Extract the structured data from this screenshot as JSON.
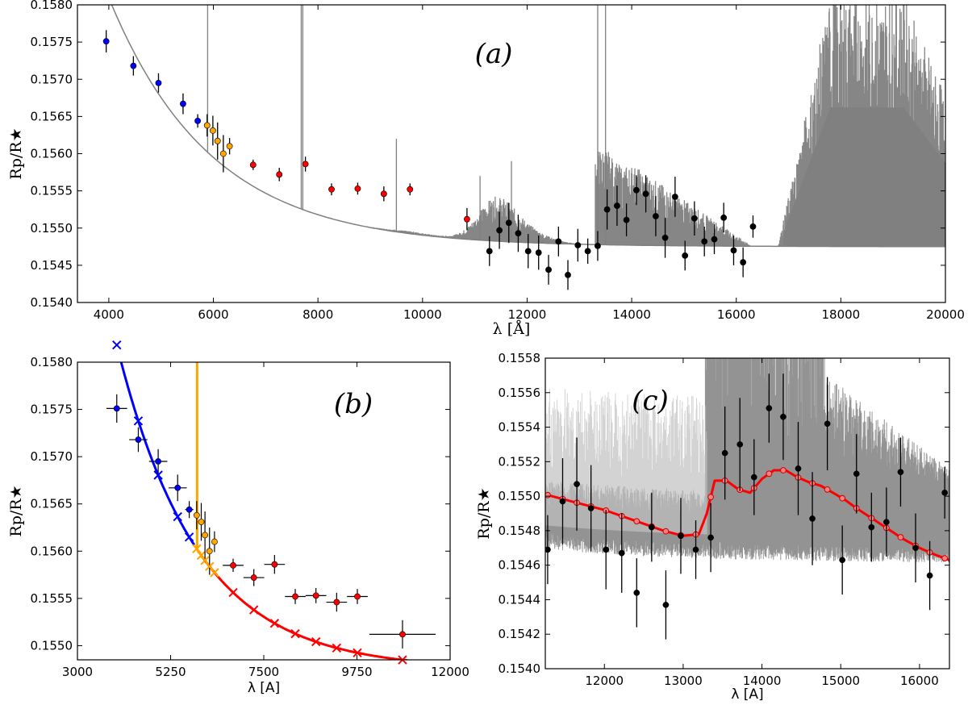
{
  "figure": {
    "panels": [
      "a",
      "b",
      "c"
    ]
  },
  "chart_data": [
    {
      "id": "a",
      "type": "line",
      "panel_label": "(a)",
      "xlabel": "λ [Å]",
      "ylabel": "Rp/R★",
      "xlim": [
        3400,
        20000
      ],
      "ylim": [
        0.154,
        0.158
      ],
      "xticks": [
        "4000",
        "6000",
        "8000",
        "10000",
        "12000",
        "14000",
        "16000",
        "18000",
        "20000"
      ],
      "yticks": [
        "0.1540",
        "0.1545",
        "0.1550",
        "0.1555",
        "0.1560",
        "0.1565",
        "0.1570",
        "0.1575",
        "0.1580"
      ],
      "model_color": "#808080",
      "series": [
        {
          "name": "blue",
          "color": "#0000ff",
          "x": [
            3950,
            4470,
            4950,
            5420,
            5700
          ],
          "y": [
            0.15751,
            0.15718,
            0.15695,
            0.15667,
            0.15644
          ],
          "err": [
            0.00015,
            0.00013,
            0.00013,
            0.00014,
            9e-05
          ]
        },
        {
          "name": "orange",
          "color": "#ffa500",
          "x": [
            5880,
            5990,
            6080,
            6190,
            6310
          ],
          "y": [
            0.15638,
            0.15631,
            0.15617,
            0.156,
            0.1561
          ],
          "err": [
            0.00015,
            0.0002,
            0.00025,
            0.00025,
            0.00011
          ]
        },
        {
          "name": "red",
          "color": "#ff0000",
          "x": [
            6760,
            7260,
            7760,
            8260,
            8760,
            9260,
            9760,
            10850
          ],
          "y": [
            0.15585,
            0.15572,
            0.15586,
            0.15552,
            0.15553,
            0.15546,
            0.15552,
            0.15512
          ],
          "err": [
            7e-05,
            9e-05,
            0.0001,
            8e-05,
            8e-05,
            0.0001,
            8e-05,
            0.00015
          ]
        },
        {
          "name": "black",
          "color": "#000000",
          "x": [
            11280,
            11470,
            11650,
            11830,
            12020,
            12220,
            12410,
            12600,
            12780,
            12970,
            13160,
            13350,
            13530,
            13720,
            13900,
            14090,
            14270,
            14460,
            14640,
            14830,
            15020,
            15200,
            15390,
            15580,
            15760,
            15950,
            16130,
            16320
          ],
          "y": [
            0.15469,
            0.15497,
            0.15507,
            0.15493,
            0.15469,
            0.15467,
            0.15444,
            0.15482,
            0.15437,
            0.15477,
            0.15469,
            0.15476,
            0.15525,
            0.1553,
            0.15511,
            0.15551,
            0.15546,
            0.15516,
            0.15487,
            0.15542,
            0.15463,
            0.15513,
            0.15482,
            0.15485,
            0.15514,
            0.1547,
            0.15454,
            0.15502
          ],
          "err": [
            0.0002,
            0.00025,
            0.00027,
            0.00025,
            0.00023,
            0.00023,
            0.0002,
            0.0002,
            0.0002,
            0.00022,
            0.00017,
            0.0002,
            0.00027,
            0.00027,
            0.00022,
            0.0002,
            0.00025,
            0.00027,
            0.00027,
            0.00027,
            0.0002,
            0.00023,
            0.0002,
            0.0002,
            0.0002,
            0.0002,
            0.0002,
            0.00015
          ]
        }
      ]
    },
    {
      "id": "b",
      "type": "line",
      "panel_label": "(b)",
      "xlabel": "λ [A]",
      "ylabel": "Rp/R★",
      "xlim": [
        3000,
        12000
      ],
      "ylim": [
        0.15485,
        0.158
      ],
      "xticks": [
        "3000",
        "5250",
        "7500",
        "9750",
        "12000"
      ],
      "yticks": [
        "0.1550",
        "0.1555",
        "0.1560",
        "0.1565",
        "0.1570",
        "0.1575",
        "0.1580"
      ],
      "model_segments": [
        {
          "name": "blue-model",
          "color": "#0000ff",
          "x_start": 3300,
          "x_end": 5830
        },
        {
          "name": "orange-model",
          "color": "#ffa500",
          "x_start": 5830,
          "x_end": 6400
        },
        {
          "name": "red-model",
          "color": "#ff0000",
          "x_start": 6000,
          "x_end": 12000
        }
      ],
      "orange_spike_x": 5890,
      "series": [
        {
          "name": "blue",
          "color": "#0000ff",
          "x": [
            3950,
            4470,
            4950,
            5420,
            5700
          ],
          "y": [
            0.15751,
            0.15718,
            0.15695,
            0.15667,
            0.15644
          ],
          "xerr": [
            250,
            220,
            220,
            220,
            100
          ],
          "err": [
            0.00015,
            0.00013,
            0.00013,
            0.00014,
            9e-05
          ],
          "model_x": [
            3950,
            4470,
            4950,
            5420,
            5700
          ]
        },
        {
          "name": "orange",
          "color": "#ffa500",
          "x": [
            5880,
            5990,
            6080,
            6190,
            6310
          ],
          "y": [
            0.15638,
            0.15631,
            0.15617,
            0.156,
            0.1561
          ],
          "xerr": [
            50,
            50,
            50,
            50,
            50
          ],
          "err": [
            0.00015,
            0.0002,
            0.00025,
            0.00025,
            0.00011
          ],
          "model_x": [
            5880,
            5990,
            6080,
            6190,
            6310
          ]
        },
        {
          "name": "red",
          "color": "#ff0000",
          "x": [
            6760,
            7260,
            7760,
            8260,
            8760,
            9260,
            9760,
            10850
          ],
          "y": [
            0.15585,
            0.15572,
            0.15586,
            0.15552,
            0.15553,
            0.15546,
            0.15552,
            0.15512
          ],
          "xerr": [
            250,
            250,
            250,
            250,
            250,
            250,
            250,
            800
          ],
          "err": [
            7e-05,
            9e-05,
            0.0001,
            8e-05,
            8e-05,
            0.0001,
            8e-05,
            0.00015
          ],
          "model_x": [
            6760,
            7260,
            7760,
            8260,
            8760,
            9260,
            9760,
            10850
          ]
        }
      ]
    },
    {
      "id": "c",
      "type": "line",
      "panel_label": "(c)",
      "xlabel": "λ [A]",
      "ylabel": "Rp/R★",
      "xlim": [
        11250,
        16380
      ],
      "ylim": [
        0.154,
        0.1558
      ],
      "xticks": [
        "12000",
        "13000",
        "14000",
        "15000",
        "16000"
      ],
      "yticks": [
        "0.1540",
        "0.1542",
        "0.1544",
        "0.1546",
        "0.1548",
        "0.1550",
        "0.1552",
        "0.1554",
        "0.1556",
        "0.1558"
      ],
      "model_color": "#ff0000",
      "model_x": [
        11250,
        11500,
        11750,
        12000,
        12250,
        12500,
        12750,
        13000,
        13200,
        13300,
        13400,
        13550,
        13700,
        13850,
        14000,
        14150,
        14300,
        14450,
        14600,
        14750,
        14900,
        15050,
        15200,
        15400,
        15600,
        15800,
        16000,
        16200,
        16380
      ],
      "model_y": [
        0.15501,
        0.15498,
        0.15495,
        0.15492,
        0.15488,
        0.15484,
        0.1548,
        0.15477,
        0.15478,
        0.1549,
        0.15509,
        0.15509,
        0.15504,
        0.15502,
        0.1551,
        0.15515,
        0.15515,
        0.15511,
        0.15508,
        0.15506,
        0.15502,
        0.15498,
        0.15493,
        0.15487,
        0.15481,
        0.15475,
        0.1547,
        0.15466,
        0.15463
      ],
      "series": [
        {
          "name": "black",
          "color": "#000000",
          "x": [
            11280,
            11470,
            11650,
            11830,
            12020,
            12220,
            12410,
            12600,
            12780,
            12970,
            13160,
            13350,
            13530,
            13720,
            13900,
            14090,
            14270,
            14460,
            14640,
            14830,
            15020,
            15200,
            15390,
            15580,
            15760,
            15950,
            16130,
            16320
          ],
          "y": [
            0.15469,
            0.15497,
            0.15507,
            0.15493,
            0.15469,
            0.15467,
            0.15444,
            0.15482,
            0.15437,
            0.15477,
            0.15469,
            0.15476,
            0.15525,
            0.1553,
            0.15511,
            0.15551,
            0.15546,
            0.15516,
            0.15487,
            0.15542,
            0.15463,
            0.15513,
            0.15482,
            0.15485,
            0.15514,
            0.1547,
            0.15454,
            0.15502
          ],
          "err": [
            0.0002,
            0.00025,
            0.00027,
            0.00025,
            0.00023,
            0.00023,
            0.0002,
            0.0002,
            0.0002,
            0.00022,
            0.00017,
            0.0002,
            0.00027,
            0.00027,
            0.00022,
            0.0002,
            0.00025,
            0.00027,
            0.00027,
            0.00027,
            0.0002,
            0.00023,
            0.0002,
            0.0002,
            0.0002,
            0.0002,
            0.0002,
            0.00015
          ]
        }
      ]
    }
  ]
}
